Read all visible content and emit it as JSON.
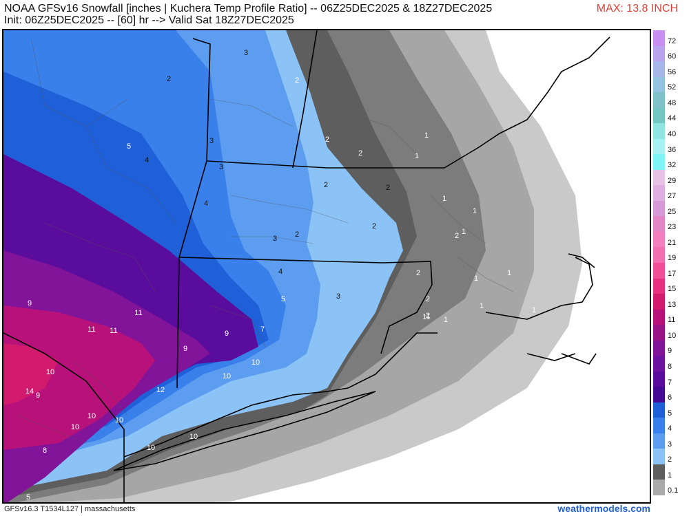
{
  "header": {
    "line1": "NOAA GFSv16 Snowfall [inches | Kuchera Temp Profile Ratio] -- 06Z25DEC2025 & 18Z27DEC2025",
    "line2": "Init: 06Z25DEC2025 -- [60] hr --> Valid Sat 18Z27DEC2025",
    "max_label": "MAX: 13.8 INCH"
  },
  "footer": {
    "left": "GFSv16.3 T1534L127 | massachusetts",
    "right": "weathermodels.com"
  },
  "colorbar": [
    {
      "label": "72",
      "color": "#c88ef0"
    },
    {
      "label": "60",
      "color": "#b9a2ee"
    },
    {
      "label": "56",
      "color": "#a7b7ea"
    },
    {
      "label": "52",
      "color": "#93c4e0"
    },
    {
      "label": "48",
      "color": "#7fc3c8"
    },
    {
      "label": "44",
      "color": "#72c7c2"
    },
    {
      "label": "40",
      "color": "#8ee5e2"
    },
    {
      "label": "36",
      "color": "#a6f2f2"
    },
    {
      "label": "32",
      "color": "#7ff5f6"
    },
    {
      "label": "29",
      "color": "#e8c2e4"
    },
    {
      "label": "27",
      "color": "#deafe0"
    },
    {
      "label": "25",
      "color": "#d89ad6"
    },
    {
      "label": "23",
      "color": "#e386c6"
    },
    {
      "label": "21",
      "color": "#f37fbe"
    },
    {
      "label": "19",
      "color": "#f46fb0"
    },
    {
      "label": "17",
      "color": "#f14e98"
    },
    {
      "label": "15",
      "color": "#e7307e"
    },
    {
      "label": "13",
      "color": "#d31b6e"
    },
    {
      "label": "11",
      "color": "#b8127a"
    },
    {
      "label": "10",
      "color": "#9a1488"
    },
    {
      "label": "9",
      "color": "#82149a"
    },
    {
      "label": "8",
      "color": "#6e12a0"
    },
    {
      "label": "7",
      "color": "#5a0d9c"
    },
    {
      "label": "6",
      "color": "#450a96"
    },
    {
      "label": "5",
      "color": "#1f5fd8"
    },
    {
      "label": "4",
      "color": "#3a80ea"
    },
    {
      "label": "3",
      "color": "#5c9df0"
    },
    {
      "label": "2",
      "color": "#8cc3f7"
    },
    {
      "label": "1",
      "color": "#5e5e5e"
    },
    {
      "label": "0.1",
      "color": "#aaaaaa"
    }
  ],
  "map_labels": [
    {
      "text": "3",
      "tone": "dark"
    },
    {
      "text": "2",
      "tone": "dark"
    },
    {
      "text": "2",
      "tone": "light"
    },
    {
      "text": "5",
      "tone": "light"
    },
    {
      "text": "4",
      "tone": "dark"
    },
    {
      "text": "3",
      "tone": "dark"
    },
    {
      "text": "2",
      "tone": "light"
    },
    {
      "text": "2",
      "tone": "light"
    },
    {
      "text": "1",
      "tone": "light"
    },
    {
      "text": "1",
      "tone": "light"
    },
    {
      "text": "3",
      "tone": "dark"
    },
    {
      "text": "2",
      "tone": "dark"
    },
    {
      "text": "2",
      "tone": "dark"
    },
    {
      "text": "4",
      "tone": "dark"
    },
    {
      "text": "1",
      "tone": "light"
    },
    {
      "text": "2",
      "tone": "dark"
    },
    {
      "text": "1",
      "tone": "light"
    },
    {
      "text": "3",
      "tone": "dark"
    },
    {
      "text": "2",
      "tone": "dark"
    },
    {
      "text": "2",
      "tone": "light"
    },
    {
      "text": "1",
      "tone": "light"
    },
    {
      "text": "4",
      "tone": "dark"
    },
    {
      "text": "2",
      "tone": "light"
    },
    {
      "text": "1",
      "tone": "light"
    },
    {
      "text": "1",
      "tone": "light"
    },
    {
      "text": "5",
      "tone": "light"
    },
    {
      "text": "3",
      "tone": "dark"
    },
    {
      "text": "2",
      "tone": "light"
    },
    {
      "text": "1",
      "tone": "light"
    },
    {
      "text": "9",
      "tone": "light"
    },
    {
      "text": "11",
      "tone": "light"
    },
    {
      "text": "1",
      "tone": "light"
    },
    {
      "text": "1",
      "tone": "light"
    },
    {
      "text": "2",
      "tone": "light"
    },
    {
      "text": "7",
      "tone": "light"
    },
    {
      "text": "9",
      "tone": "light"
    },
    {
      "text": "11",
      "tone": "light"
    },
    {
      "text": "11",
      "tone": "light"
    },
    {
      "text": "11",
      "tone": "light"
    },
    {
      "text": "9",
      "tone": "light"
    },
    {
      "text": "14",
      "tone": "light"
    },
    {
      "text": "10",
      "tone": "light"
    },
    {
      "text": "9",
      "tone": "light"
    },
    {
      "text": "12",
      "tone": "light"
    },
    {
      "text": "10",
      "tone": "light"
    },
    {
      "text": "10",
      "tone": "light"
    },
    {
      "text": "10",
      "tone": "light"
    },
    {
      "text": "10",
      "tone": "light"
    },
    {
      "text": "10",
      "tone": "light"
    },
    {
      "text": "10",
      "tone": "light"
    },
    {
      "text": "10",
      "tone": "light"
    },
    {
      "text": "8",
      "tone": "light"
    },
    {
      "text": "5",
      "tone": "light"
    }
  ]
}
